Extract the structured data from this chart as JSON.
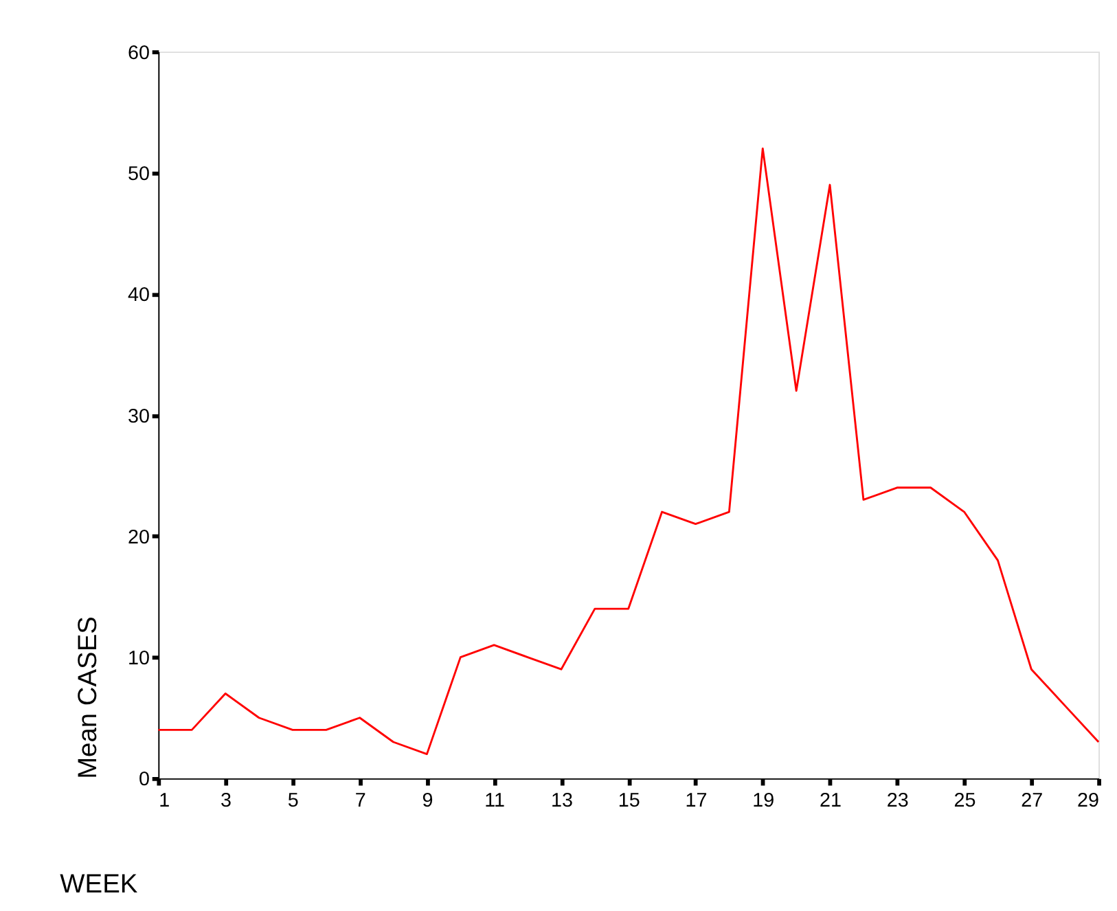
{
  "chart_data": {
    "type": "line",
    "xlabel": "WEEK",
    "ylabel": "Mean CASES",
    "x": [
      1,
      2,
      3,
      4,
      5,
      6,
      7,
      8,
      9,
      10,
      11,
      12,
      13,
      14,
      15,
      16,
      17,
      18,
      19,
      20,
      21,
      22,
      23,
      24,
      25,
      26,
      27,
      28,
      29
    ],
    "series": [
      {
        "color": "#ff0000",
        "values": [
          4,
          4,
          7,
          5,
          4,
          4,
          5,
          3,
          2,
          10,
          11,
          10,
          9,
          14,
          14,
          22,
          21,
          22,
          52,
          32,
          49,
          23,
          24,
          24,
          22,
          18,
          9,
          6,
          3
        ]
      }
    ],
    "xlim": [
      1,
      29
    ],
    "xticks": [
      1,
      3,
      5,
      7,
      9,
      11,
      13,
      15,
      17,
      19,
      21,
      23,
      25,
      27,
      29
    ],
    "ylim": [
      0,
      60
    ],
    "yticks": [
      0,
      10,
      20,
      30,
      40,
      50,
      60
    ],
    "grid": false,
    "legend": false,
    "marker": "none",
    "line_style": "solid"
  }
}
